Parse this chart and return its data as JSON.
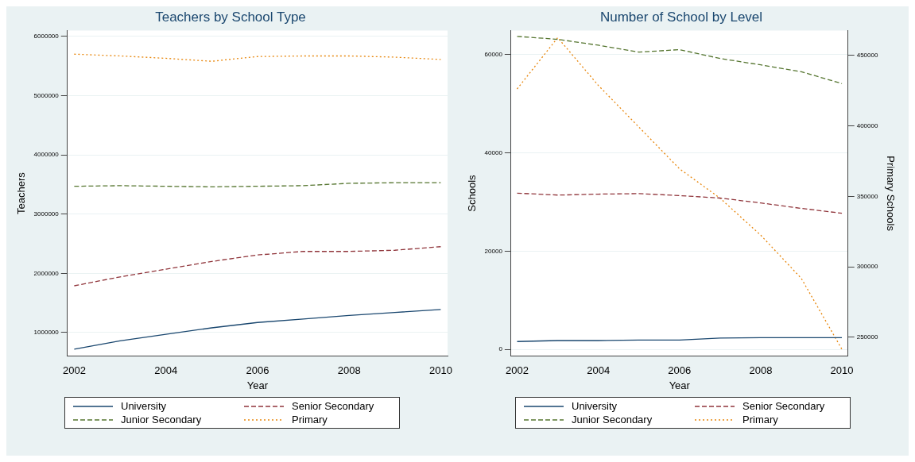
{
  "chart_data": [
    {
      "type": "line",
      "title": "Teachers by School Type",
      "xlabel": "Year",
      "ylabel": "Teachers",
      "x": [
        2002,
        2003,
        2004,
        2005,
        2006,
        2007,
        2008,
        2009,
        2010
      ],
      "series": [
        {
          "name": "University",
          "color": "#1a476f",
          "line_style": "solid",
          "values": [
            720000,
            860000,
            970000,
            1080000,
            1170000,
            1230000,
            1290000,
            1340000,
            1390000
          ]
        },
        {
          "name": "Senior Secondary",
          "color": "#90353b",
          "line_style": "dashed",
          "values": [
            1790000,
            1940000,
            2070000,
            2200000,
            2310000,
            2370000,
            2370000,
            2390000,
            2450000
          ]
        },
        {
          "name": "Junior Secondary",
          "color": "#55752f",
          "line_style": "dashed",
          "values": [
            3470000,
            3480000,
            3470000,
            3460000,
            3470000,
            3480000,
            3520000,
            3530000,
            3530000
          ]
        },
        {
          "name": "Primary",
          "color": "#e8870d",
          "line_style": "dotted",
          "values": [
            5700000,
            5670000,
            5630000,
            5580000,
            5660000,
            5670000,
            5670000,
            5650000,
            5610000
          ]
        }
      ],
      "xlim": [
        2001.85,
        2010.15
      ],
      "xticks": [
        2002,
        2004,
        2006,
        2008,
        2010
      ],
      "ylim": [
        600000,
        6100000
      ],
      "yticks": [
        1000000,
        2000000,
        3000000,
        4000000,
        5000000,
        6000000
      ],
      "grid": "y",
      "legend": "bottom"
    },
    {
      "type": "line",
      "title": "Number of School by Level",
      "xlabel": "Year",
      "ylabel": "Schools",
      "y2label": "Primary Schools",
      "x": [
        2002,
        2003,
        2004,
        2005,
        2006,
        2007,
        2008,
        2009,
        2010
      ],
      "series": [
        {
          "name": "University",
          "color": "#1a476f",
          "line_style": "solid",
          "values": [
            1600,
            1800,
            1800,
            1900,
            1900,
            2300,
            2400,
            2400,
            2400
          ]
        },
        {
          "name": "Senior Secondary",
          "color": "#90353b",
          "line_style": "dashed",
          "values": [
            31800,
            31400,
            31600,
            31700,
            31300,
            30800,
            29800,
            28700,
            27700
          ]
        },
        {
          "name": "Junior Secondary",
          "color": "#55752f",
          "line_style": "dashed",
          "values": [
            63700,
            63100,
            61900,
            60500,
            61000,
            59200,
            57900,
            56500,
            54100
          ]
        },
        {
          "name": "Primary",
          "color": "#e8870d",
          "line_style": "dotted",
          "axis": "y2",
          "values": [
            426300,
            462700,
            428800,
            399200,
            369600,
            348700,
            322500,
            291800,
            241500
          ]
        }
      ],
      "xlim": [
        2001.85,
        2010.15
      ],
      "xticks": [
        2002,
        2004,
        2006,
        2008,
        2010
      ],
      "ylim": [
        -1400,
        64900
      ],
      "yticks": [
        0,
        20000,
        40000,
        60000
      ],
      "y2lim": [
        236500,
        467800
      ],
      "y2ticks": [
        250000,
        300000,
        350000,
        400000,
        450000
      ],
      "grid": "y",
      "legend": "bottom"
    }
  ]
}
